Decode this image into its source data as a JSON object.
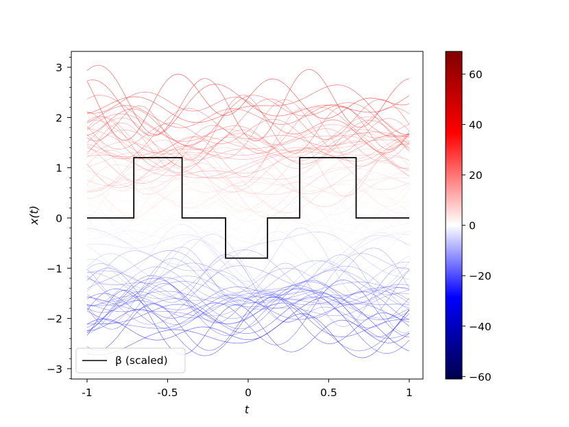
{
  "chart_data": {
    "type": "line",
    "x_range": [
      -1,
      1
    ],
    "ylim": [
      -3.2,
      3.3
    ],
    "xlabel": "t",
    "ylabel": "x(t)",
    "x_ticks": [
      -1,
      -0.5,
      0,
      0.5,
      1
    ],
    "x_tick_labels": [
      "-1",
      "-0.5",
      "0",
      "0.5",
      "1"
    ],
    "y_ticks": [
      -3,
      -2,
      -1,
      0,
      1,
      2,
      3
    ],
    "y_tick_labels": [
      "−3",
      "−2",
      "−1",
      "0",
      "1",
      "2",
      "3"
    ],
    "beta_series": {
      "name": "β (scaled)",
      "color": "#000000",
      "x": [
        -1,
        -0.71,
        -0.71,
        -0.41,
        -0.41,
        -0.14,
        -0.14,
        0.12,
        0.12,
        0.32,
        0.32,
        0.67,
        0.67,
        1
      ],
      "y": [
        0,
        0,
        1.2,
        1.2,
        0,
        0,
        -0.8,
        -0.8,
        0,
        0,
        1.2,
        1.2,
        0,
        0
      ]
    },
    "sample_curves": {
      "count": 100,
      "description_free": true,
      "offset_range": [
        -2.3,
        2.4
      ],
      "amplitude": 0.45
    },
    "colorbar": {
      "colormap": "seismic",
      "range": [
        -61,
        69
      ],
      "ticks": [
        60,
        40,
        20,
        0,
        -20,
        -40,
        -60
      ],
      "tick_labels": [
        "60",
        "40",
        "20",
        "0",
        "−20",
        "−40",
        "−60"
      ],
      "colors": [
        "#00004c",
        "#0000ff",
        "#ffffff",
        "#ff0000",
        "#800000"
      ]
    },
    "legend": {
      "placement": "lower-left",
      "label": "β (scaled)"
    },
    "grid": false
  }
}
